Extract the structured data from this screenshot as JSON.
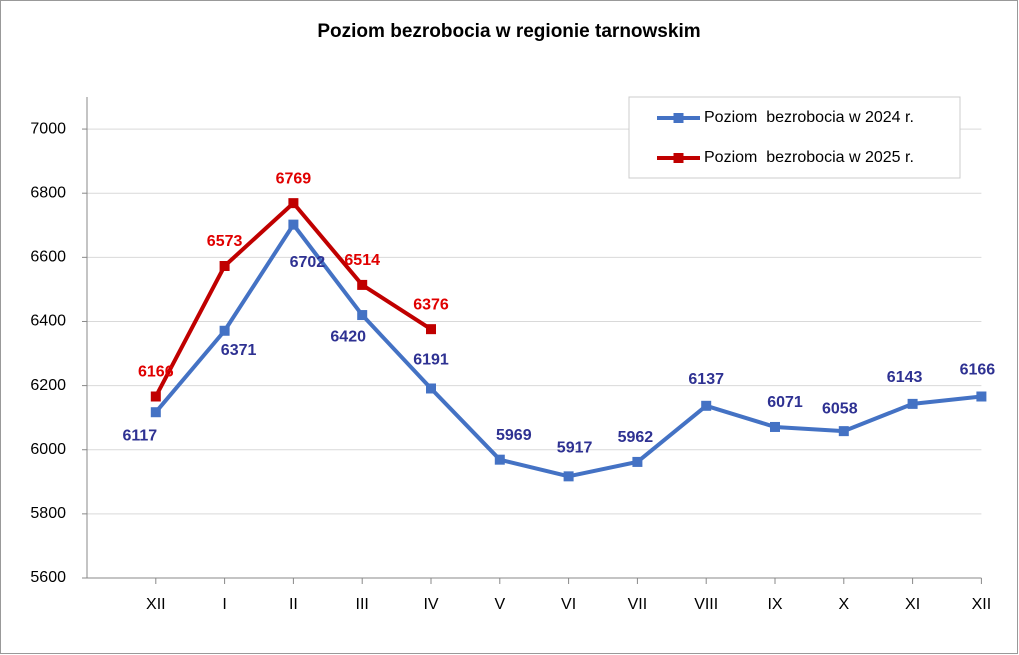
{
  "chart_data": {
    "type": "line",
    "title": "Poziom bezrobocia w regionie tarnowskim",
    "categories": [
      "XII",
      "I",
      "II",
      "III",
      "IV",
      "V",
      "VI",
      "VII",
      "VIII",
      "IX",
      "X",
      "XI",
      "XII"
    ],
    "series": [
      {
        "name": "Poziom  bezrobocia w 2024 r.",
        "color": "#4472c4",
        "label_color": "#2e3192",
        "values": [
          6117,
          6371,
          6702,
          6420,
          6191,
          5969,
          5917,
          5962,
          6137,
          6071,
          6058,
          6143,
          6166
        ]
      },
      {
        "name": "Poziom  bezrobocia w 2025 r.",
        "color": "#c00000",
        "label_color": "#e00000",
        "values": [
          6166,
          6573,
          6769,
          6514,
          6376,
          null,
          null,
          null,
          null,
          null,
          null,
          null,
          null
        ]
      }
    ],
    "ylim": [
      5600,
      7100
    ],
    "yticks": [
      5600,
      5800,
      6000,
      6200,
      6400,
      6600,
      6800,
      7000
    ],
    "grid": true,
    "legend": "upper right"
  }
}
